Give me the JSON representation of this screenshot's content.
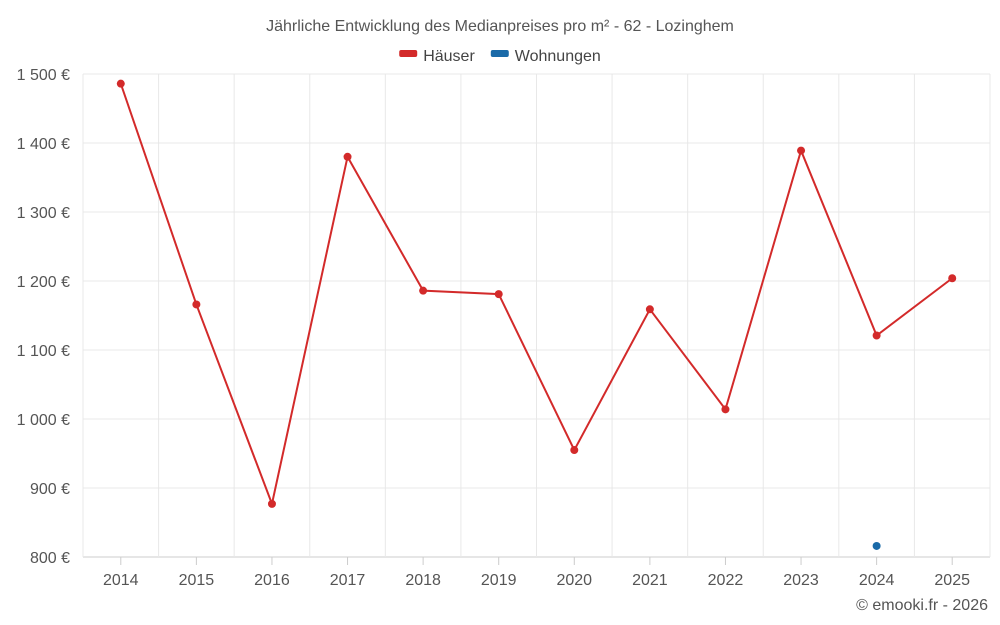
{
  "chart_data": {
    "type": "line",
    "title": "Jährliche Entwicklung des Medianpreises pro m² - 62 - Lozinghem",
    "x": [
      "2014",
      "2015",
      "2016",
      "2017",
      "2018",
      "2019",
      "2020",
      "2021",
      "2022",
      "2023",
      "2024",
      "2025"
    ],
    "series": [
      {
        "name": "Häuser",
        "color": "#d32a2a",
        "values": [
          1486,
          1166,
          877,
          1380,
          1186,
          1181,
          955,
          1159,
          1014,
          1389,
          1121,
          1204
        ]
      },
      {
        "name": "Wohnungen",
        "color": "#1a6aa8",
        "values": [
          null,
          null,
          null,
          null,
          null,
          null,
          null,
          null,
          null,
          null,
          816,
          null
        ]
      }
    ],
    "ylim": [
      800,
      1500
    ],
    "yticks": [
      800,
      900,
      1000,
      1100,
      1200,
      1300,
      1400,
      1500
    ],
    "ytick_labels": [
      "800 €",
      "900 €",
      "1 000 €",
      "1 100 €",
      "1 200 €",
      "1 300 €",
      "1 400 €",
      "1 500 €"
    ],
    "legend": "top-center",
    "grid": true
  },
  "credit": "© emooki.fr - 2026"
}
